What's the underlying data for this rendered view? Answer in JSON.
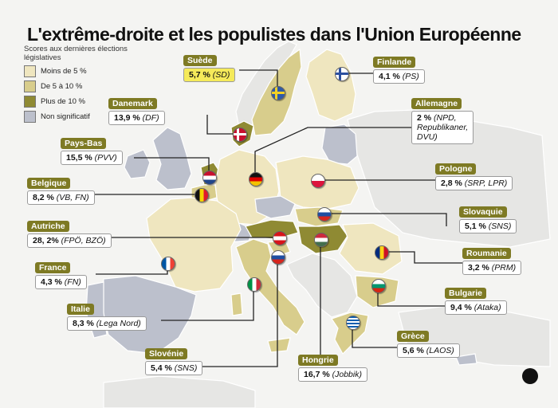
{
  "title": "L'extrême-droite et les populistes dans l'Union Européenne",
  "legend": {
    "title": "Scores aux dernières élections législatives",
    "items": [
      {
        "label": "Moins de  5 %",
        "color": "#efe6bf"
      },
      {
        "label": "De 5 à 10 %",
        "color": "#d8cd8c"
      },
      {
        "label": "Plus de  10 %",
        "color": "#8f8a33"
      },
      {
        "label": "Non significatif",
        "color": "#bcc0cc"
      }
    ]
  },
  "colors": {
    "sea": "#f4f4f2",
    "non_eu": "#e6e6e4",
    "tag_bg": "#7e7a24",
    "highlight_box": "#f5ea5a",
    "leader_line": "#222222"
  },
  "countries": [
    {
      "id": "suede",
      "name": "Suède",
      "value": "5,7 %",
      "parties": "(SD)",
      "band": "5-10",
      "highlight": true
    },
    {
      "id": "finlande",
      "name": "Finlande",
      "value": "4,1 %",
      "parties": "(PS)",
      "band": "<5"
    },
    {
      "id": "danemark",
      "name": "Danemark",
      "value": "13,9 %",
      "parties": "(DF)",
      "band": ">10"
    },
    {
      "id": "allemagne",
      "name": "Allemagne",
      "value": "2 %",
      "parties": "(NPD, Republikaner, DVU)",
      "parties_lines": [
        "(NPD,",
        "Republikaner,",
        "DVU)"
      ],
      "band": "<5"
    },
    {
      "id": "paysbas",
      "name": "Pays-Bas",
      "value": "15,5 %",
      "parties": "(PVV)",
      "band": ">10"
    },
    {
      "id": "belgique",
      "name": "Belgique",
      "value": "8,2 %",
      "parties": "(VB, FN)",
      "band": "5-10"
    },
    {
      "id": "pologne",
      "name": "Pologne",
      "value": "2,8 %",
      "parties": "(SRP, LPR)",
      "band": "<5"
    },
    {
      "id": "slovaquie",
      "name": "Slovaquie",
      "value": "5,1 %",
      "parties": "(SNS)",
      "band": "5-10"
    },
    {
      "id": "autriche",
      "name": "Autriche",
      "value": "28, 2%",
      "parties": "(FPÖ, BZÖ)",
      "band": ">10"
    },
    {
      "id": "roumanie",
      "name": "Roumanie",
      "value": "3,2 %",
      "parties": "(PRM)",
      "band": "<5"
    },
    {
      "id": "france",
      "name": "France",
      "value": "4,3 %",
      "parties": "(FN)",
      "band": "<5"
    },
    {
      "id": "bulgarie",
      "name": "Bulgarie",
      "value": "9,4 %",
      "parties": "(Ataka)",
      "band": "5-10"
    },
    {
      "id": "italie",
      "name": "Italie",
      "value": "8,3 %",
      "parties": "(Lega Nord)",
      "band": "5-10"
    },
    {
      "id": "grece",
      "name": "Grèce",
      "value": "5,6 %",
      "parties": "(LAOS)",
      "band": "5-10"
    },
    {
      "id": "slovenie",
      "name": "Slovénie",
      "value": "5,4 %",
      "parties": "(SNS)",
      "band": "5-10"
    },
    {
      "id": "hongrie",
      "name": "Hongrie",
      "value": "16,7 %",
      "parties": "(Jobbik)",
      "band": ">10"
    }
  ]
}
